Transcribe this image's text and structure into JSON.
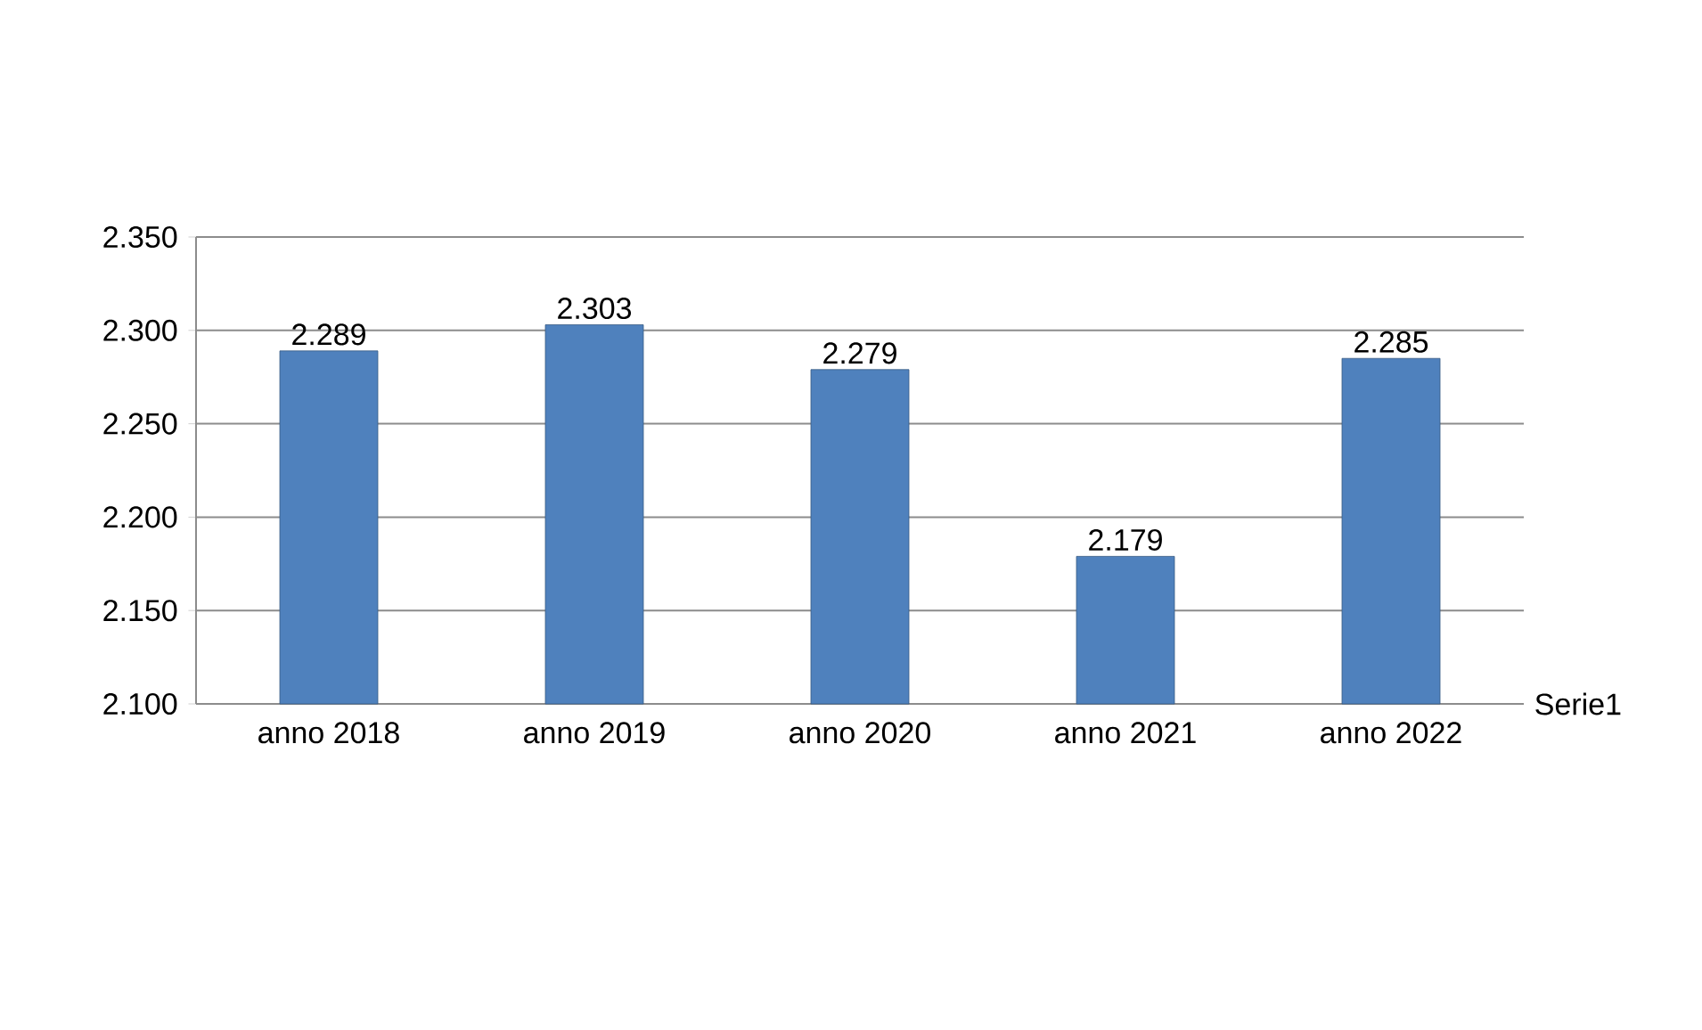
{
  "chart_data": {
    "type": "bar",
    "categories": [
      "anno 2018",
      "anno 2019",
      "anno 2020",
      "anno 2021",
      "anno 2022"
    ],
    "series": [
      {
        "name": "Serie1",
        "color": "#4f81bd",
        "values": [
          2.289,
          2.303,
          2.279,
          2.179,
          2.285
        ]
      }
    ],
    "ylim": [
      2.1,
      2.35
    ],
    "yticks": [
      {
        "value": 2.1,
        "label": "2.100"
      },
      {
        "value": 2.15,
        "label": "2.150"
      },
      {
        "value": 2.2,
        "label": "2.200"
      },
      {
        "value": 2.25,
        "label": "2.250"
      },
      {
        "value": 2.3,
        "label": "2.300"
      },
      {
        "value": 2.35,
        "label": "2.350"
      }
    ],
    "grid": "y",
    "data_labels": true
  }
}
